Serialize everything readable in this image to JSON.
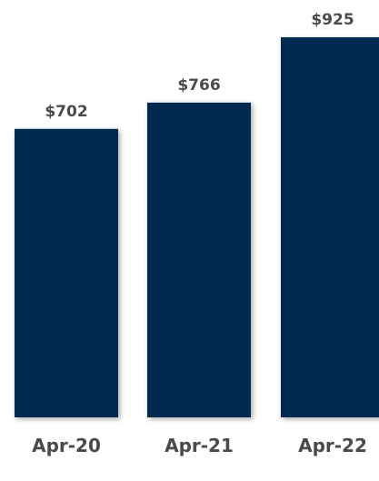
{
  "chart_data": {
    "type": "bar",
    "categories": [
      "Apr-20",
      "Apr-21",
      "Apr-22"
    ],
    "values": [
      702,
      766,
      925
    ],
    "value_labels": [
      "$702",
      "$766",
      "$925"
    ],
    "title": "",
    "xlabel": "",
    "ylabel": "",
    "ylim": [
      0,
      925
    ],
    "grid": false,
    "legend": "none",
    "colors": {
      "bar": "#032b4f",
      "label": "#4a4a4a"
    }
  }
}
